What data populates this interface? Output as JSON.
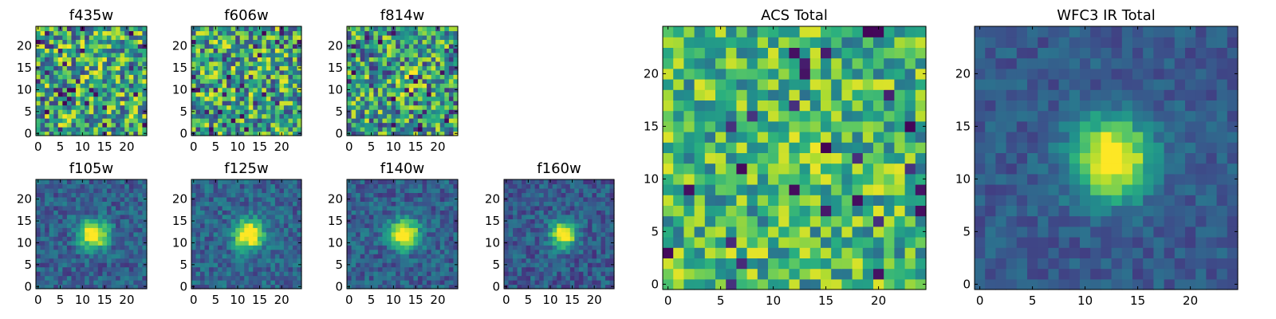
{
  "chart_data": [
    {
      "type": "heatmap",
      "title": "f435w",
      "x_ticks": [
        "0",
        "5",
        "10",
        "15",
        "20"
      ],
      "y_ticks": [
        "0",
        "5",
        "10",
        "15",
        "20"
      ],
      "grid_size": 25,
      "seed": 11,
      "field": {
        "amp": 0.0,
        "sigma": 2.5,
        "cx": 12.5,
        "cy": 12.5,
        "bg": 0.6,
        "noise": 0.4,
        "dark_fraction": 0.06
      }
    },
    {
      "type": "heatmap",
      "title": "f606w",
      "x_ticks": [
        "0",
        "5",
        "10",
        "15",
        "20"
      ],
      "y_ticks": [
        "0",
        "5",
        "10",
        "15",
        "20"
      ],
      "grid_size": 25,
      "seed": 23,
      "field": {
        "amp": 0.05,
        "sigma": 2.5,
        "cx": 12.5,
        "cy": 12.5,
        "bg": 0.58,
        "noise": 0.4,
        "dark_fraction": 0.05
      }
    },
    {
      "type": "heatmap",
      "title": "f814w",
      "x_ticks": [
        "0",
        "5",
        "10",
        "15",
        "20"
      ],
      "y_ticks": [
        "0",
        "5",
        "10",
        "15",
        "20"
      ],
      "grid_size": 25,
      "seed": 37,
      "field": {
        "amp": 0.25,
        "sigma": 2.0,
        "cx": 13.0,
        "cy": 12.0,
        "bg": 0.55,
        "noise": 0.4,
        "dark_fraction": 0.04
      }
    },
    {
      "type": "heatmap",
      "title": "f105w",
      "x_ticks": [
        "0",
        "5",
        "10",
        "15",
        "20"
      ],
      "y_ticks": [
        "0",
        "5",
        "10",
        "15",
        "20"
      ],
      "grid_size": 25,
      "seed": 41,
      "field": {
        "amp": 0.85,
        "sigma": 2.2,
        "cx": 12.5,
        "cy": 12.0,
        "bg": 0.3,
        "noise": 0.15,
        "dark_fraction": 0.0
      }
    },
    {
      "type": "heatmap",
      "title": "f125w",
      "x_ticks": [
        "0",
        "5",
        "10",
        "15",
        "20"
      ],
      "y_ticks": [
        "0",
        "5",
        "10",
        "15",
        "20"
      ],
      "grid_size": 25,
      "seed": 53,
      "field": {
        "amp": 0.85,
        "sigma": 2.3,
        "cx": 12.5,
        "cy": 12.0,
        "bg": 0.32,
        "noise": 0.15,
        "dark_fraction": 0.0
      }
    },
    {
      "type": "heatmap",
      "title": "f140w",
      "x_ticks": [
        "0",
        "5",
        "10",
        "15",
        "20"
      ],
      "y_ticks": [
        "0",
        "5",
        "10",
        "15",
        "20"
      ],
      "grid_size": 25,
      "seed": 67,
      "field": {
        "amp": 0.85,
        "sigma": 2.3,
        "cx": 12.5,
        "cy": 12.0,
        "bg": 0.3,
        "noise": 0.15,
        "dark_fraction": 0.0
      }
    },
    {
      "type": "heatmap",
      "title": "f160w",
      "x_ticks": [
        "0",
        "5",
        "10",
        "15",
        "20"
      ],
      "y_ticks": [
        "0",
        "5",
        "10",
        "15",
        "20"
      ],
      "grid_size": 25,
      "seed": 79,
      "field": {
        "amp": 0.85,
        "sigma": 2.0,
        "cx": 13.0,
        "cy": 12.0,
        "bg": 0.28,
        "noise": 0.15,
        "dark_fraction": 0.0
      }
    },
    {
      "type": "heatmap",
      "title": "ACS Total",
      "x_ticks": [
        "0",
        "5",
        "10",
        "15",
        "20"
      ],
      "y_ticks": [
        "0",
        "5",
        "10",
        "15",
        "20"
      ],
      "grid_size": 25,
      "seed": 97,
      "field": {
        "amp": 0.18,
        "sigma": 2.5,
        "cx": 12.5,
        "cy": 12.0,
        "bg": 0.66,
        "noise": 0.3,
        "dark_fraction": 0.045
      }
    },
    {
      "type": "heatmap",
      "title": "WFC3 IR Total",
      "x_ticks": [
        "0",
        "5",
        "10",
        "15",
        "20"
      ],
      "y_ticks": [
        "0",
        "5",
        "10",
        "15",
        "20"
      ],
      "grid_size": 25,
      "seed": 113,
      "field": {
        "amp": 0.85,
        "sigma": 2.6,
        "cx": 12.5,
        "cy": 12.0,
        "bg": 0.28,
        "noise": 0.1,
        "dark_fraction": 0.0
      }
    }
  ],
  "colormap": [
    "#440154",
    "#472d7b",
    "#3b528b",
    "#2c728e",
    "#21918c",
    "#28ae80",
    "#5ec962",
    "#addc30",
    "#fde725"
  ]
}
